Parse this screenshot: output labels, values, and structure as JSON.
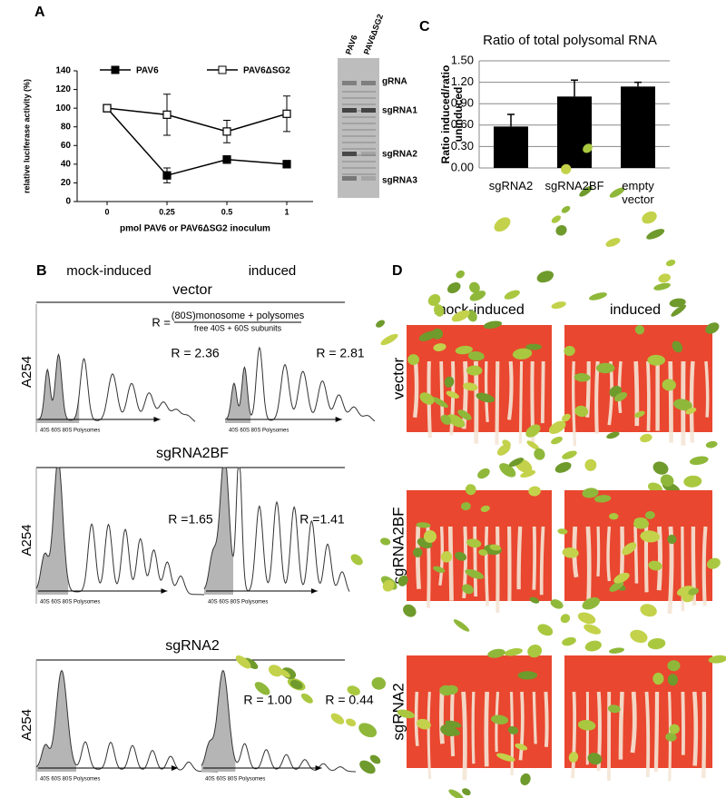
{
  "panels": {
    "a": "A",
    "b": "B",
    "c": "C",
    "d": "D"
  },
  "chart_data": [
    {
      "type": "line",
      "x_label": "pmol PAV6 or PAV6ΔSG2 inoculum",
      "y_label": "relative luciferase activity (%)",
      "categories": [
        "0",
        "0.25",
        "0.5",
        "1"
      ],
      "ylim": [
        0,
        140
      ],
      "yticks": [
        0,
        20,
        40,
        60,
        80,
        100,
        120,
        140
      ],
      "series": [
        {
          "name": "PAV6",
          "color": "#000000",
          "marker": "filled-square",
          "values": [
            100,
            28,
            45,
            40
          ],
          "errors": [
            null,
            8,
            4,
            4
          ]
        },
        {
          "name": "PAV6ΔSG2",
          "color": "#000000",
          "marker": "open-square",
          "values": [
            100,
            93,
            75,
            94
          ],
          "errors": [
            null,
            22,
            12,
            19
          ]
        }
      ]
    },
    {
      "type": "bar",
      "title": "Ratio of total polysomal RNA",
      "y_label": "Ratio induced/ratio uninduced",
      "categories": [
        "sgRNA2",
        "sgRNA2BF",
        "empty vector"
      ],
      "values": [
        0.58,
        1.0,
        1.14
      ],
      "errors": [
        0.17,
        0.23,
        0.06
      ],
      "color": "#000000",
      "ylim": [
        0,
        1.5
      ],
      "yticks": [
        {
          "value": 0,
          "label": "0.00"
        },
        {
          "value": 0.3,
          "label": "0.30"
        },
        {
          "value": 0.6,
          "label": "0.60"
        },
        {
          "value": 0.9,
          "label": "0.90"
        },
        {
          "value": 1.2,
          "label": "1.20"
        },
        {
          "value": 1.5,
          "label": "1.50"
        }
      ],
      "grid": true
    }
  ],
  "gel": {
    "lanes": [
      "PAV6",
      "PAV6ΔSG2"
    ],
    "bands": [
      "gRNA",
      "sgRNA1",
      "sgRNA2",
      "sgRNA3"
    ]
  },
  "profiles": {
    "conditions": [
      "mock-induced",
      "induced"
    ],
    "formula": {
      "lhs": "R =",
      "numerator": "(80S)monosome + polysomes",
      "denominator": "free 40S + 60S subunits"
    },
    "y_label": "A254",
    "axis_label": "40S 60S 80S Polysomes",
    "rows": [
      {
        "name": "vector",
        "ratios": [
          "R = 2.36",
          "R = 2.81"
        ]
      },
      {
        "name": "sgRNA2BF",
        "ratios": [
          "R =1.65",
          "R =1.41"
        ]
      },
      {
        "name": "sgRNA2",
        "ratios": [
          "R = 1.00",
          "R = 0.44"
        ]
      }
    ]
  },
  "plants": {
    "conditions": [
      "mock-induced",
      "induced"
    ],
    "rows": [
      "vector",
      "sgRNA2BF",
      "sgRNA2"
    ]
  }
}
